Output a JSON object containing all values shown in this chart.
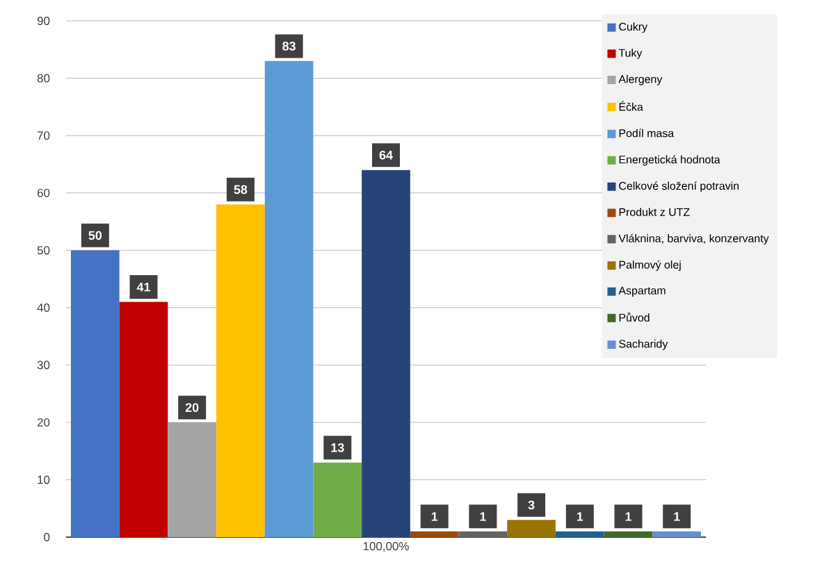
{
  "chart_data": {
    "type": "bar",
    "categories": [
      "100,00%"
    ],
    "series": [
      {
        "name": "Cukry",
        "color": "#4472c4",
        "values": [
          50
        ]
      },
      {
        "name": "Tuky",
        "color": "#c00000",
        "values": [
          41
        ]
      },
      {
        "name": "Alergeny",
        "color": "#a5a5a5",
        "values": [
          20
        ]
      },
      {
        "name": "Éčka",
        "color": "#ffc000",
        "values": [
          58
        ]
      },
      {
        "name": "Podíl masa",
        "color": "#5b9bd5",
        "values": [
          83
        ]
      },
      {
        "name": "Energetická hodnota",
        "color": "#70ad47",
        "values": [
          13
        ]
      },
      {
        "name": "Celkové složení potravin",
        "color": "#264478",
        "values": [
          64
        ]
      },
      {
        "name": "Produkt z UTZ",
        "color": "#9e480e",
        "values": [
          1
        ]
      },
      {
        "name": "Vláknina, barviva, konzervanty",
        "color": "#636363",
        "values": [
          1
        ]
      },
      {
        "name": "Palmový olej",
        "color": "#997300",
        "values": [
          3
        ]
      },
      {
        "name": "Aspartam",
        "color": "#255e91",
        "values": [
          1
        ]
      },
      {
        "name": "Původ",
        "color": "#43682b",
        "values": [
          1
        ]
      },
      {
        "name": "Sacharidy",
        "color": "#698ed0",
        "values": [
          1
        ]
      }
    ],
    "ylim": [
      0,
      90
    ],
    "yticks": [
      0,
      10,
      20,
      30,
      40,
      50,
      60,
      70,
      80,
      90
    ],
    "grid": "y",
    "legend": "top right",
    "data_labels": true
  }
}
